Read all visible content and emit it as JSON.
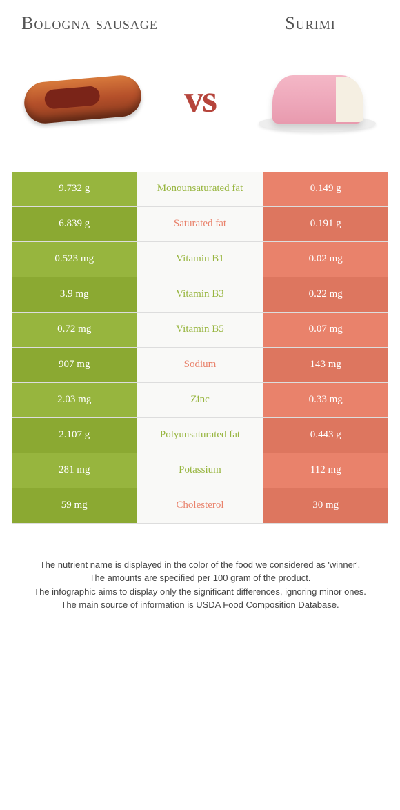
{
  "header": {
    "left_title": "Bologna sausage",
    "right_title": "Surimi",
    "vs_label": "vs"
  },
  "colors": {
    "left_food": "#97b53e",
    "right_food": "#e9826b",
    "row_alt_tint": 0.08,
    "mid_bg": "#f9f9f7"
  },
  "comparison": {
    "type": "table",
    "columns": [
      "left_value",
      "nutrient",
      "right_value"
    ],
    "rows": [
      {
        "left": "9.732 g",
        "nutrient": "Monounsaturated fat",
        "right": "0.149 g",
        "winner": "left"
      },
      {
        "left": "6.839 g",
        "nutrient": "Saturated fat",
        "right": "0.191 g",
        "winner": "right"
      },
      {
        "left": "0.523 mg",
        "nutrient": "Vitamin B1",
        "right": "0.02 mg",
        "winner": "left"
      },
      {
        "left": "3.9 mg",
        "nutrient": "Vitamin B3",
        "right": "0.22 mg",
        "winner": "left"
      },
      {
        "left": "0.72 mg",
        "nutrient": "Vitamin B5",
        "right": "0.07 mg",
        "winner": "left"
      },
      {
        "left": "907 mg",
        "nutrient": "Sodium",
        "right": "143 mg",
        "winner": "right"
      },
      {
        "left": "2.03 mg",
        "nutrient": "Zinc",
        "right": "0.33 mg",
        "winner": "left"
      },
      {
        "left": "2.107 g",
        "nutrient": "Polyunsaturated fat",
        "right": "0.443 g",
        "winner": "left"
      },
      {
        "left": "281 mg",
        "nutrient": "Potassium",
        "right": "112 mg",
        "winner": "left"
      },
      {
        "left": "59 mg",
        "nutrient": "Cholesterol",
        "right": "30 mg",
        "winner": "right"
      }
    ]
  },
  "footer": {
    "line1": "The nutrient name is displayed in the color of the food we considered as 'winner'.",
    "line2": "The amounts are specified per 100 gram of the product.",
    "line3": "The infographic aims to display only the significant differences, ignoring minor ones.",
    "line4": "The main source of information is USDA Food Composition Database."
  }
}
